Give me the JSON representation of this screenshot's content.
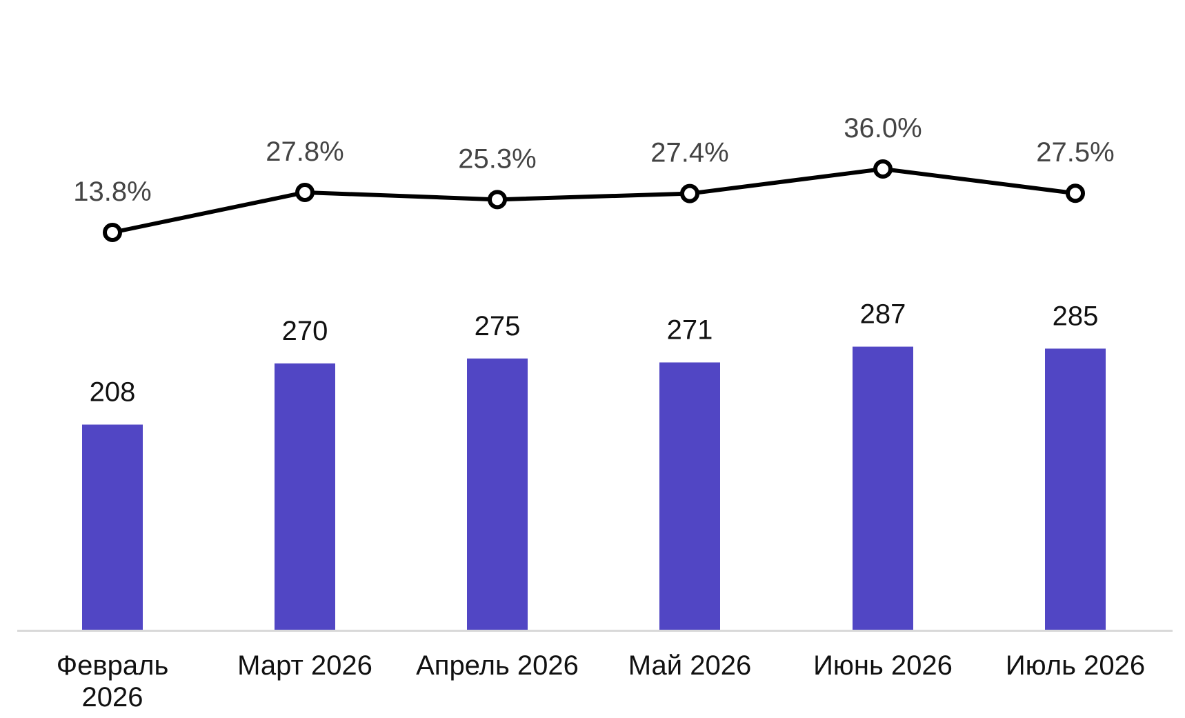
{
  "chart_data": {
    "type": "bar",
    "categories": [
      [
        "Февраль",
        "2026"
      ],
      [
        "Март 2026"
      ],
      [
        "Апрель 2026"
      ],
      [
        "Май 2026"
      ],
      [
        "Июнь 2026"
      ],
      [
        "Июль 2026"
      ]
    ],
    "series": [
      {
        "type": "bar",
        "values": [
          208,
          270,
          275,
          271,
          287,
          285
        ],
        "labels": [
          "208",
          "270",
          "275",
          "271",
          "287",
          "285"
        ],
        "color": "#5146c4"
      },
      {
        "type": "line",
        "values": [
          13.8,
          27.8,
          25.3,
          27.4,
          36.0,
          27.5
        ],
        "labels": [
          "13.8%",
          "27.8%",
          "25.3%",
          "27.4%",
          "36.0%",
          "27.5%"
        ],
        "color": "#000000"
      }
    ],
    "title": "",
    "xlabel": "",
    "ylabel": "",
    "grid": false,
    "legend": "none",
    "axis_color": "#d9d9d9"
  }
}
